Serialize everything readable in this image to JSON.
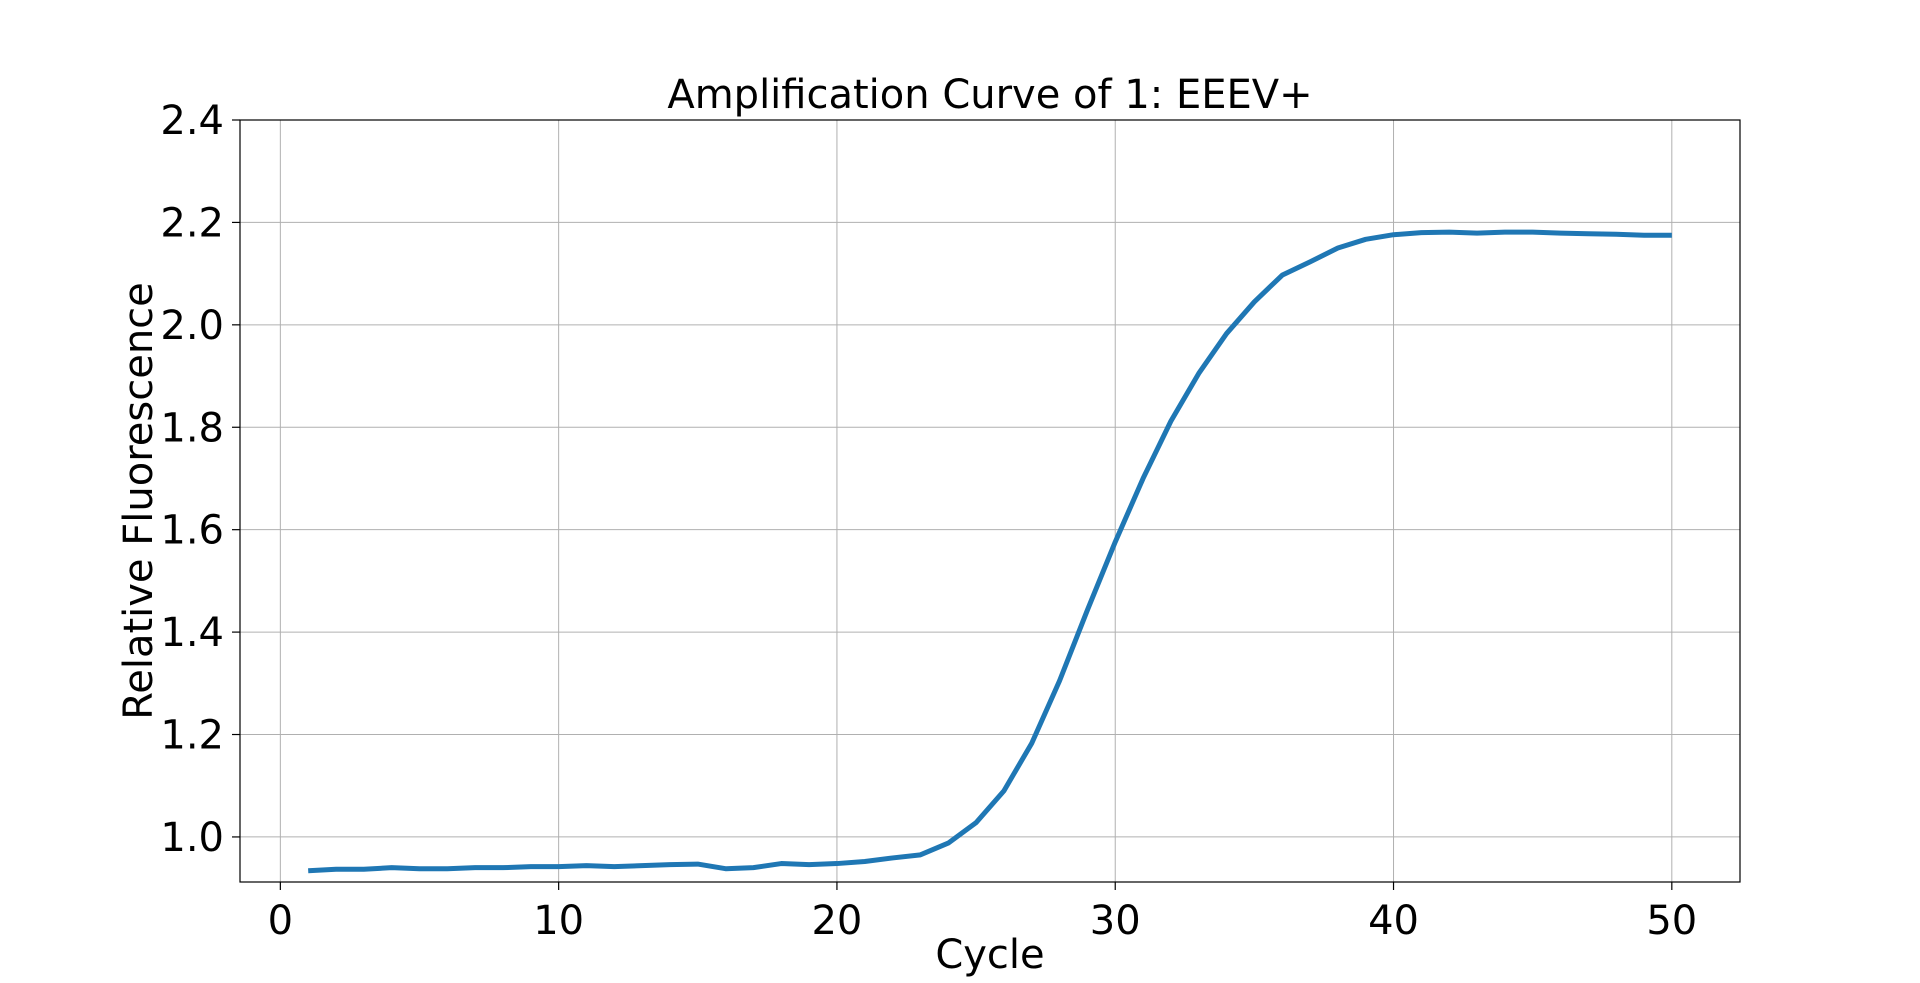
{
  "chart_data": {
    "type": "line",
    "title": "Amplification Curve of 1: EEEV+",
    "xlabel": "Cycle",
    "ylabel": "Relative Fluorescence",
    "xlim": [
      -1.45,
      52.45
    ],
    "ylim": [
      0.912,
      2.4
    ],
    "xticks": [
      0,
      10,
      20,
      30,
      40,
      50
    ],
    "yticks": [
      1.0,
      1.2,
      1.4,
      1.6,
      1.8,
      2.0,
      2.2,
      2.4
    ],
    "xtick_labels": [
      "0",
      "10",
      "20",
      "30",
      "40",
      "50"
    ],
    "ytick_labels": [
      "1.0",
      "1.2",
      "1.4",
      "1.6",
      "1.8",
      "2.0",
      "2.2",
      "2.4"
    ],
    "grid": true,
    "series": [
      {
        "color": "#1f77b4",
        "x": [
          1,
          2,
          3,
          4,
          5,
          6,
          7,
          8,
          9,
          10,
          11,
          12,
          13,
          14,
          15,
          16,
          17,
          18,
          19,
          20,
          21,
          22,
          23,
          24,
          25,
          26,
          27,
          28,
          29,
          30,
          31,
          32,
          33,
          34,
          35,
          36,
          37,
          38,
          39,
          40,
          41,
          42,
          43,
          44,
          45,
          46,
          47,
          48,
          49,
          50
        ],
        "y": [
          0.934,
          0.937,
          0.937,
          0.94,
          0.938,
          0.938,
          0.94,
          0.94,
          0.942,
          0.942,
          0.944,
          0.942,
          0.944,
          0.946,
          0.947,
          0.938,
          0.94,
          0.948,
          0.946,
          0.948,
          0.952,
          0.959,
          0.965,
          0.988,
          1.028,
          1.09,
          1.183,
          1.305,
          1.443,
          1.576,
          1.7,
          1.812,
          1.905,
          1.983,
          2.045,
          2.097,
          2.123,
          2.15,
          2.167,
          2.176,
          2.18,
          2.181,
          2.179,
          2.181,
          2.181,
          2.179,
          2.178,
          2.177,
          2.175,
          2.175
        ]
      }
    ]
  }
}
